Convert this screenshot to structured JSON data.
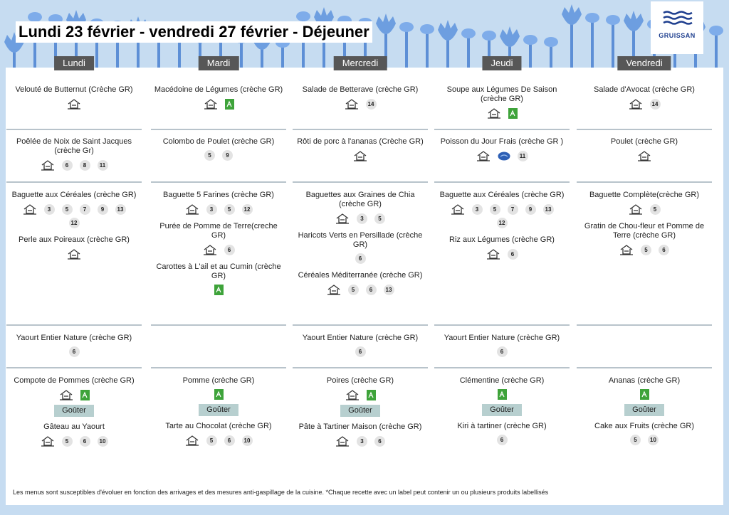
{
  "header": {
    "title": "Lundi 23 février - vendredi 27 février  - Déjeuner",
    "logo": "GRUISSAN"
  },
  "days": [
    {
      "name": "Lundi",
      "sections": [
        [
          {
            "name": "Velouté de Butternut (Crèche GR)",
            "homemade": true
          }
        ],
        [
          {
            "name": "Poêlée de Noix de Saint Jacques (crèche Gr)",
            "homemade": true,
            "allergens": [
              6,
              8,
              11
            ]
          }
        ],
        [
          {
            "name": "Baguette aux Céréales (crèche GR)",
            "homemade": true,
            "allergens": [
              3,
              5,
              7,
              9,
              13,
              12
            ]
          },
          {
            "name": "Perle aux Poireaux (crèche GR)",
            "homemade": true
          }
        ],
        [
          {
            "name": "Yaourt Entier Nature (crèche GR)",
            "allergens": [
              6
            ]
          }
        ],
        [
          {
            "name": "Compote de Pommes (crèche GR)",
            "homemade": true,
            "organic": true
          }
        ]
      ],
      "snack_label": "Goûter",
      "snack": {
        "name": "Gâteau au Yaourt",
        "homemade": true,
        "allergens": [
          5,
          6,
          10
        ]
      }
    },
    {
      "name": "Mardi",
      "sections": [
        [
          {
            "name": "Macédoine de Légumes (crèche GR)",
            "homemade": true,
            "organic": true
          }
        ],
        [
          {
            "name": "Colombo de Poulet (crèche GR)",
            "allergens": [
              5,
              9
            ]
          }
        ],
        [
          {
            "name": "Baguette 5 Farines (crèche GR)",
            "homemade": true,
            "allergens": [
              3,
              5,
              12
            ]
          },
          {
            "name": "Purée de Pomme de Terre(creche GR)",
            "homemade": true,
            "allergens": [
              6
            ]
          },
          {
            "name": "Carottes à L'ail et au Cumin (crèche GR)",
            "organic": true
          }
        ],
        [],
        [
          {
            "name": "Pomme (crèche GR)",
            "organic": true
          }
        ]
      ],
      "snack_label": "Goûter",
      "snack": {
        "name": "Tarte au Chocolat (crèche GR)",
        "homemade": true,
        "allergens": [
          5,
          6,
          10
        ]
      }
    },
    {
      "name": "Mercredi",
      "sections": [
        [
          {
            "name": "Salade de Betterave (crèche GR)",
            "homemade": true,
            "allergens": [
              14
            ]
          }
        ],
        [
          {
            "name": "Rôti de porc à l'ananas (Crèche GR)",
            "homemade": true
          }
        ],
        [
          {
            "name": "Baguettes aux Graines de Chia (crèche GR)",
            "homemade": true,
            "allergens": [
              3,
              5
            ]
          },
          {
            "name": "Haricots Verts en Persillade (crèche GR)",
            "allergens": [
              6
            ]
          },
          {
            "name": "Céréales Méditerranée (crèche GR)",
            "homemade": true,
            "allergens": [
              5,
              6,
              13
            ]
          }
        ],
        [
          {
            "name": "Yaourt Entier Nature (crèche GR)",
            "allergens": [
              6
            ]
          }
        ],
        [
          {
            "name": "Poires (crèche GR)",
            "homemade": true,
            "organic": true
          }
        ]
      ],
      "snack_label": "Goûter",
      "snack": {
        "name": "Pâte à Tartiner Maison (crèche GR)",
        "homemade": true,
        "allergens": [
          3,
          6
        ]
      }
    },
    {
      "name": "Jeudi",
      "sections": [
        [
          {
            "name": "Soupe aux Légumes De Saison (crèche GR)",
            "homemade": true,
            "organic": true
          }
        ],
        [
          {
            "name": "Poisson du Jour Frais (crèche GR )",
            "homemade": true,
            "fish_label": true,
            "allergens": [
              11
            ]
          }
        ],
        [
          {
            "name": "Baguette aux Céréales (crèche GR)",
            "homemade": true,
            "allergens": [
              3,
              5,
              7,
              9,
              13,
              12
            ]
          },
          {
            "name": "Riz aux Légumes (crèche GR)",
            "homemade": true,
            "allergens": [
              6
            ]
          }
        ],
        [
          {
            "name": "Yaourt Entier Nature (crèche GR)",
            "allergens": [
              6
            ]
          }
        ],
        [
          {
            "name": "Clémentine (crèche GR)",
            "organic": true
          }
        ]
      ],
      "snack_label": "Goûter",
      "snack": {
        "name": "Kiri à tartiner (crèche GR)",
        "allergens": [
          6
        ]
      }
    },
    {
      "name": "Vendredi",
      "sections": [
        [
          {
            "name": "Salade d'Avocat (crèche GR)",
            "homemade": true,
            "allergens": [
              14
            ]
          }
        ],
        [
          {
            "name": "Poulet (crèche GR)",
            "homemade": true
          }
        ],
        [
          {
            "name": "Baguette Complète(crèche GR)",
            "homemade": true,
            "allergens": [
              5
            ]
          },
          {
            "name": "Gratin de Chou-fleur et Pomme de Terre (crèche GR)",
            "homemade": true,
            "allergens": [
              5,
              6
            ]
          }
        ],
        [],
        [
          {
            "name": "Ananas (crèche GR)",
            "organic": true
          }
        ]
      ],
      "snack_label": "Goûter",
      "snack": {
        "name": "Cake aux Fruits (crèche GR)",
        "allergens": [
          5,
          10
        ]
      }
    }
  ],
  "footer": "Les menus sont susceptibles d'évoluer en fonction des arrivages et des mesures anti-gaspillage de la cuisine. *Chaque recette avec un label peut contenir un ou plusieurs produits labellisés"
}
